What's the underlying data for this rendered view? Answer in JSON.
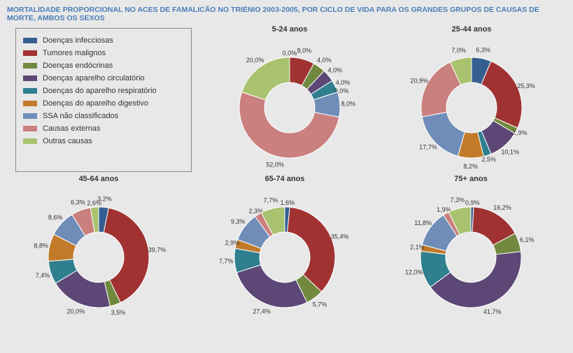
{
  "title": "MORTALIDADE PROPORCIONAL NO ACES DE FAMALICÃO NO TRIÉNIO 2003-2005, POR CICLO DE VIDA PARA OS GRANDES GRUPOS DE CAUSAS DE MORTE, AMBOS OS SEXOS",
  "categories": [
    {
      "key": "infecciosas",
      "label": "Doenças infecciosas",
      "color": "#355f91"
    },
    {
      "key": "tumores",
      "label": "Tumores malignos",
      "color": "#a03232"
    },
    {
      "key": "endocrinas",
      "label": "Doenças endócrinas",
      "color": "#71893f"
    },
    {
      "key": "circulatorio",
      "label": "Doenças aparelho circulatório",
      "color": "#5c4776"
    },
    {
      "key": "respiratorio",
      "label": "Doenças do aparelho respiratório",
      "color": "#2f7f8f"
    },
    {
      "key": "digestivo",
      "label": "Doenças do aparelho digestivo",
      "color": "#c27a2a"
    },
    {
      "key": "ssa",
      "label": "SSA não classificados",
      "color": "#6f8db8"
    },
    {
      "key": "externas",
      "label": "Causas externas",
      "color": "#c9807e"
    },
    {
      "key": "outras",
      "label": "Outras causas",
      "color": "#a9c26f"
    }
  ],
  "charts": [
    {
      "title": "5-24 anos",
      "values": {
        "infecciosas": 0.0,
        "tumores": 8.0,
        "endocrinas": 4.0,
        "circulatorio": 4.0,
        "respiratorio": 4.0,
        "digestivo": 0.0,
        "ssa": 8.0,
        "externas": 52.0,
        "outras": 20.0
      }
    },
    {
      "title": "25-44 anos",
      "values": {
        "infecciosas": 6.3,
        "tumores": 25.3,
        "endocrinas": 1.9,
        "circulatorio": 10.1,
        "respiratorio": 2.5,
        "digestivo": 8.2,
        "ssa": 17.7,
        "externas": 20.9,
        "outras": 7.0
      }
    },
    {
      "title": "45-64 anos",
      "values": {
        "infecciosas": 3.2,
        "tumores": 39.7,
        "endocrinas": 3.5,
        "circulatorio": 20.0,
        "respiratorio": 7.4,
        "digestivo": 8.8,
        "ssa": 8.6,
        "externas": 6.3,
        "outras": 2.6
      }
    },
    {
      "title": "65-74 anos",
      "values": {
        "infecciosas": 1.6,
        "tumores": 35.4,
        "endocrinas": 5.7,
        "circulatorio": 27.4,
        "respiratorio": 7.7,
        "digestivo": 2.9,
        "ssa": 9.3,
        "externas": 2.3,
        "outras": 7.7
      }
    },
    {
      "title": "75+ anos",
      "values": {
        "infecciosas": 0.9,
        "tumores": 16.2,
        "endocrinas": 6.1,
        "circulatorio": 41.7,
        "respiratorio": 12.0,
        "digestivo": 2.1,
        "ssa": 11.8,
        "externas": 1.9,
        "outras": 7.3
      }
    }
  ],
  "chart_style": {
    "type": "donut",
    "outer_r": 72,
    "inner_r": 36,
    "label_r": 84,
    "svg_size": 200,
    "background_color": "#e8e8e8",
    "label_fontsize": 9,
    "title_fontsize": 11,
    "number_format": "pt-one-decimal-percent"
  }
}
